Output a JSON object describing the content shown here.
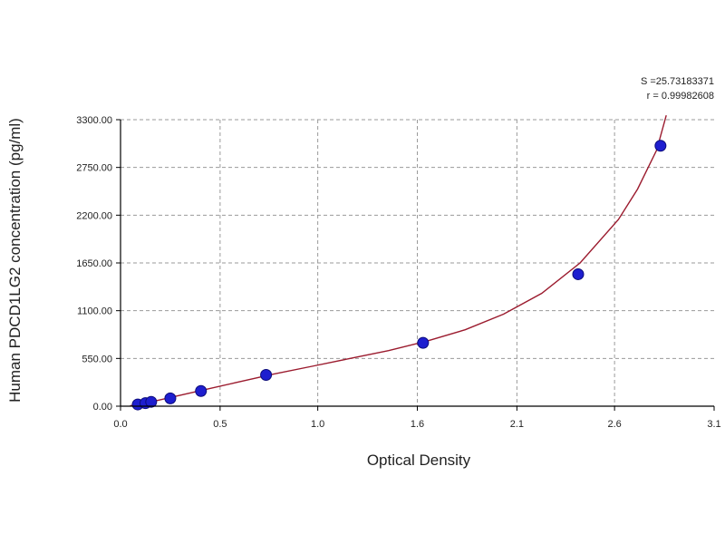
{
  "chart_data": {
    "type": "scatter",
    "xlabel": "Optical Density",
    "ylabel": "Human PDCD1LG2 concentration (pg/ml)",
    "xlim": [
      0.0,
      3.1
    ],
    "ylim": [
      0.0,
      3300.0
    ],
    "x_ticks": [
      "0.0",
      "0.5",
      "1.0",
      "1.6",
      "2.1",
      "2.6",
      "3.1"
    ],
    "x_tick_values": [
      0.0,
      0.52,
      1.03,
      1.55,
      2.07,
      2.58,
      3.1
    ],
    "y_ticks": [
      "0.00",
      "550.00",
      "1100.00",
      "1650.00",
      "2200.00",
      "2750.00",
      "3300.00"
    ],
    "y_tick_values": [
      0,
      550,
      1100,
      1650,
      2200,
      2750,
      3300
    ],
    "grid": true,
    "annotations": [
      "S =25.73183371",
      "r = 0.99982608"
    ],
    "points": {
      "x": [
        0.09,
        0.13,
        0.16,
        0.26,
        0.42,
        0.76,
        1.58,
        2.39,
        2.82
      ],
      "y": [
        20,
        35,
        50,
        90,
        175,
        360,
        730,
        1520,
        3000
      ]
    },
    "fit_curve": {
      "x": [
        0.05,
        0.2,
        0.4,
        0.6,
        0.8,
        1.0,
        1.2,
        1.4,
        1.6,
        1.8,
        2.0,
        2.2,
        2.4,
        2.6,
        2.7,
        2.8,
        2.85
      ],
      "y": [
        5,
        70,
        170,
        270,
        370,
        460,
        550,
        640,
        750,
        880,
        1060,
        1300,
        1650,
        2150,
        2500,
        2950,
        3350
      ]
    },
    "colors": {
      "point_fill": "#1e1ecf",
      "point_stroke": "#0c0c7a",
      "curve": "#9b1b2e",
      "grid": "#9a9a9a",
      "axis": "#000000"
    }
  }
}
